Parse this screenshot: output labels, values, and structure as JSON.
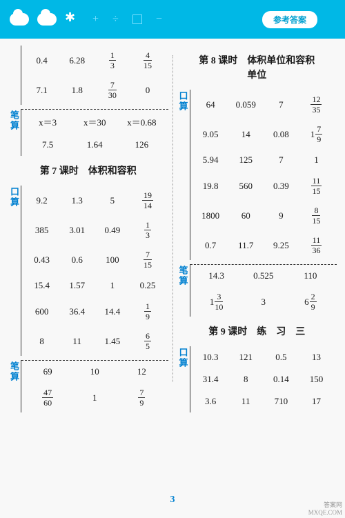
{
  "header": {
    "badge": "参考答案"
  },
  "pagenum": "3",
  "watermark": {
    "line1": "答案网",
    "line2": "MXQE.COM"
  },
  "left": {
    "top_block": {
      "kousuan_label": "",
      "r1": [
        "0.4",
        "6.28",
        {
          "n": "1",
          "d": "3"
        },
        {
          "n": "4",
          "d": "15"
        }
      ],
      "r2": [
        "7.1",
        "1.8",
        {
          "n": "7",
          "d": "30"
        },
        "0"
      ],
      "bisuan_label": "笔算",
      "r3": [
        "x＝3",
        "x＝30",
        "x＝0.68"
      ],
      "r4": [
        "7.5",
        "1.64",
        "126"
      ]
    },
    "lesson7": {
      "title": "第 7 课时　体积和容积",
      "kousuan_label": "口算",
      "rows_k": [
        [
          "9.2",
          "1.3",
          "5",
          {
            "n": "19",
            "d": "14"
          }
        ],
        [
          "385",
          "3.01",
          "0.49",
          {
            "n": "1",
            "d": "3"
          }
        ],
        [
          "0.43",
          "0.6",
          "100",
          {
            "n": "7",
            "d": "15"
          }
        ],
        [
          "15.4",
          "1.57",
          "1",
          "0.25"
        ],
        [
          "600",
          "36.4",
          "14.4",
          {
            "n": "1",
            "d": "9"
          }
        ],
        [
          "8",
          "11",
          "1.45",
          {
            "n": "6",
            "d": "5"
          }
        ]
      ],
      "bisuan_label": "笔算",
      "rows_b": [
        [
          "69",
          "10",
          "12"
        ],
        [
          {
            "n": "47",
            "d": "60"
          },
          "1",
          {
            "n": "7",
            "d": "9"
          }
        ]
      ]
    }
  },
  "right": {
    "lesson8": {
      "title1": "第 8 课时　体积单位和容积",
      "title2": "单位",
      "kousuan_label": "口算",
      "rows_k": [
        [
          "64",
          "0.059",
          "7",
          {
            "n": "12",
            "d": "35"
          }
        ],
        [
          "9.05",
          "14",
          "0.08",
          {
            "w": "1",
            "n": "7",
            "d": "9"
          }
        ],
        [
          "5.94",
          "125",
          "7",
          "1"
        ],
        [
          "19.8",
          "560",
          "0.39",
          {
            "n": "11",
            "d": "15"
          }
        ],
        [
          "1800",
          "60",
          "9",
          {
            "n": "8",
            "d": "15"
          }
        ],
        [
          "0.7",
          "11.7",
          "9.25",
          {
            "n": "11",
            "d": "36"
          }
        ]
      ],
      "bisuan_label": "笔算",
      "rows_b": [
        [
          "14.3",
          "0.525",
          "110"
        ],
        [
          {
            "w": "1",
            "n": "3",
            "d": "10"
          },
          "3",
          {
            "w": "6",
            "n": "2",
            "d": "9"
          }
        ]
      ]
    },
    "lesson9": {
      "title": "第 9 课时　练　习　三",
      "kousuan_label": "口算",
      "rows_k": [
        [
          "10.3",
          "121",
          "0.5",
          "13"
        ],
        [
          "31.4",
          "8",
          "0.14",
          "150"
        ],
        [
          "3.6",
          "11",
          "710",
          "17"
        ]
      ]
    }
  }
}
